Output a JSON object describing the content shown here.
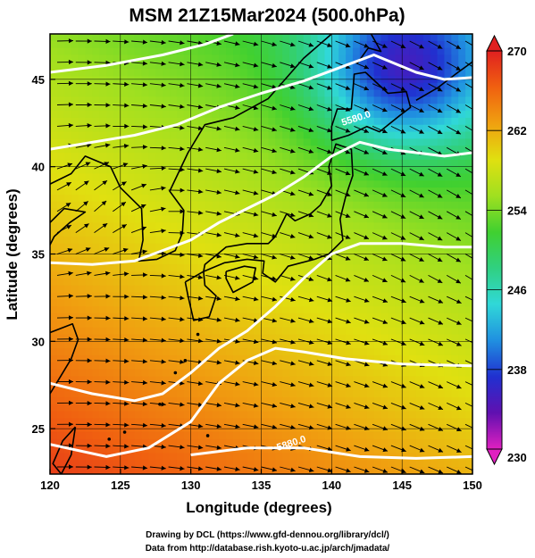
{
  "title": "MSM 21Z15Mar2024 (500.0hPa)",
  "xlabel": "Longitude (degrees)",
  "ylabel": "Latitude  (degrees)",
  "credits": {
    "line1": "Drawing by DCL (https://www.gfd-dennou.org/library/dcl/)",
    "line2": "Data from http://database.rish.kyoto-u.ac.jp/arch/jmadata/"
  },
  "map": {
    "lon_range": [
      120,
      150
    ],
    "lat_range": [
      22.4,
      47.6
    ],
    "lon_ticks": [
      120,
      125,
      130,
      135,
      140,
      145,
      150
    ],
    "lat_ticks": [
      25,
      30,
      35,
      40,
      45
    ],
    "grid": true
  },
  "colorbar": {
    "min": 230,
    "max": 270,
    "labels": [
      230,
      238,
      246,
      254,
      262,
      270
    ],
    "colors": [
      "#e020c0",
      "#6010b0",
      "#2030d0",
      "#2090e0",
      "#30d8d8",
      "#30d080",
      "#40d030",
      "#a0e020",
      "#e0e010",
      "#f0a010",
      "#f06010",
      "#e02020"
    ]
  },
  "contours": {
    "labels": [
      {
        "text": "5580.0",
        "lon": 141.8,
        "lat": 42.6
      },
      {
        "text": "5880.0",
        "lon": 137.2,
        "lat": 24.0
      }
    ],
    "lines": [
      [
        [
          120,
          45.4
        ],
        [
          124,
          45.8
        ],
        [
          128,
          46.4
        ],
        [
          131,
          47.0
        ],
        [
          133,
          47.6
        ]
      ],
      [
        [
          120,
          41.0
        ],
        [
          123,
          41.4
        ],
        [
          126,
          41.8
        ],
        [
          129,
          42.4
        ],
        [
          132,
          43.4
        ],
        [
          135,
          44.2
        ],
        [
          138,
          44.9
        ],
        [
          141,
          45.8
        ],
        [
          143,
          46.4
        ],
        [
          146,
          45.4
        ],
        [
          148,
          45.0
        ],
        [
          150,
          45.1
        ]
      ],
      [
        [
          120,
          34.5
        ],
        [
          123,
          34.4
        ],
        [
          126,
          34.6
        ],
        [
          128,
          35.2
        ],
        [
          130,
          35.8
        ],
        [
          132,
          36.8
        ],
        [
          134,
          37.6
        ],
        [
          136,
          38.4
        ],
        [
          138,
          39.4
        ],
        [
          140,
          40.6
        ],
        [
          142,
          41.4
        ],
        [
          144,
          41.0
        ],
        [
          146,
          40.8
        ],
        [
          148,
          40.6
        ],
        [
          150,
          40.8
        ]
      ],
      [
        [
          120,
          27.6
        ],
        [
          123,
          27.0
        ],
        [
          126,
          26.6
        ],
        [
          128,
          27.0
        ],
        [
          130,
          28.2
        ],
        [
          132,
          29.6
        ],
        [
          134,
          30.6
        ],
        [
          136,
          32.0
        ],
        [
          138,
          33.6
        ],
        [
          140,
          35.0
        ],
        [
          142,
          35.6
        ],
        [
          145,
          35.6
        ],
        [
          148,
          35.4
        ],
        [
          150,
          35.4
        ]
      ],
      [
        [
          120,
          24.1
        ],
        [
          124,
          23.4
        ],
        [
          127,
          23.9
        ],
        [
          130,
          25.4
        ],
        [
          132,
          27.6
        ],
        [
          134,
          28.9
        ],
        [
          136,
          29.6
        ],
        [
          138,
          29.4
        ],
        [
          141,
          29.0
        ],
        [
          145,
          28.7
        ],
        [
          150,
          28.6
        ]
      ],
      [
        [
          130,
          23.5
        ],
        [
          134,
          23.9
        ],
        [
          138,
          23.9
        ],
        [
          142,
          23.4
        ],
        [
          146,
          23.3
        ],
        [
          150,
          23.4
        ]
      ]
    ]
  },
  "wind": {
    "arrow_rows": 21,
    "arrow_cols": 23
  }
}
